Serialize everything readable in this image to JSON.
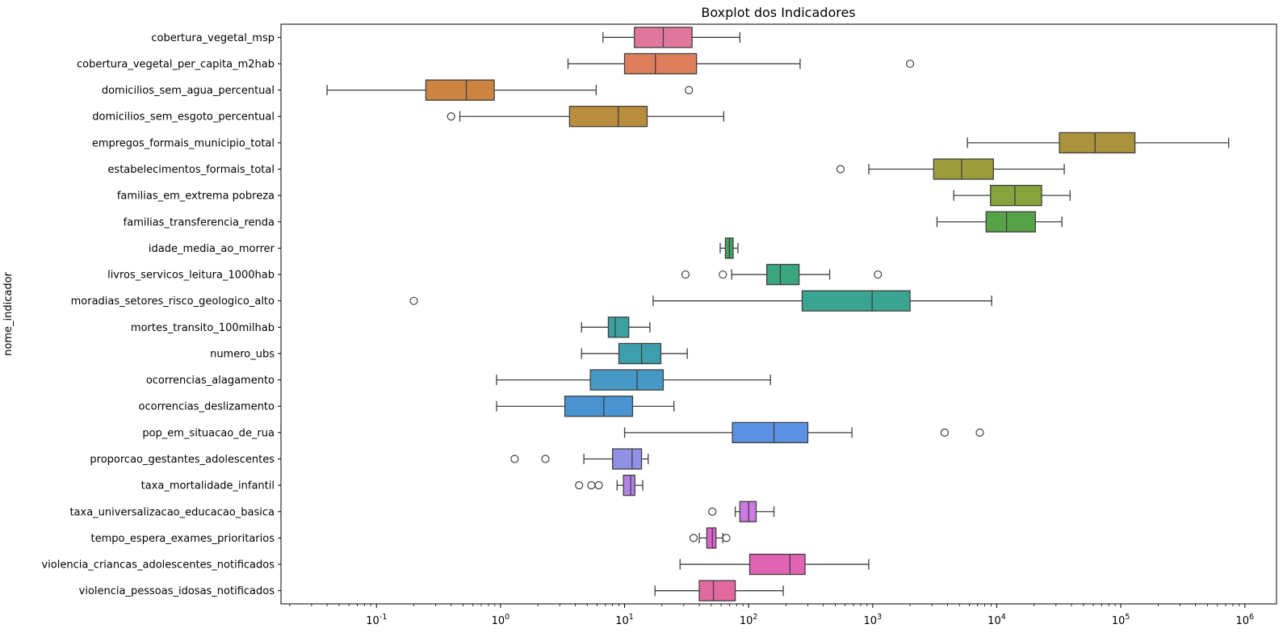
{
  "chart_data": {
    "type": "boxplot",
    "orientation": "horizontal",
    "title": "Boxplot dos Indicadores",
    "xlabel": "",
    "ylabel": "nome_indicador",
    "xscale": "log",
    "xlim": [
      0.017,
      1800000
    ],
    "xtick_base": "10",
    "xtick_exponents": [
      -1,
      0,
      1,
      2,
      3,
      4,
      5,
      6
    ],
    "grid": false,
    "legend": "none",
    "edge_color": "#3f3f3f",
    "spine_color": "#000000",
    "background_color": "#ffffff",
    "categories": [
      "cobertura_vegetal_msp",
      "cobertura_vegetal_per_capita_m2hab",
      "domicilios_sem_agua_percentual",
      "domicilios_sem_esgoto_percentual",
      "empregos_formais_municipio_total",
      "estabelecimentos_formais_total",
      "familias_em_extrema pobreza",
      "familias_transferencia_renda",
      "idade_media_ao_morrer",
      "livros_servicos_leitura_1000hab",
      "moradias_setores_risco_geologico_alto",
      "mortes_transito_100milhab",
      "numero_ubs",
      "ocorrencias_alagamento",
      "ocorrencias_deslizamento",
      "pop_em_situacao_de_rua",
      "proporcao_gestantes_adolescentes",
      "taxa_mortalidade_infantil",
      "taxa_universalizacao_educacao_basica",
      "tempo_espera_exames_prioritarios",
      "violencia_criancas_adolescentes_notificados",
      "violencia_pessoas_idosas_notificados"
    ],
    "boxes": [
      {
        "label": "cobertura_vegetal_msp",
        "color": "#e0789e",
        "whislo": 6.7,
        "q1": 12,
        "med": 20.5,
        "q3": 35,
        "whishi": 85,
        "fliers": []
      },
      {
        "label": "cobertura_vegetal_per_capita_m2hab",
        "color": "#de7e5d",
        "whislo": 3.5,
        "q1": 10,
        "med": 17.7,
        "q3": 38,
        "whishi": 260,
        "fliers": [
          2000
        ]
      },
      {
        "label": "domicilios_sem_agua_percentual",
        "color": "#cc8440",
        "whislo": 0.04,
        "q1": 0.25,
        "med": 0.53,
        "q3": 0.89,
        "whishi": 5.9,
        "fliers": [
          33
        ]
      },
      {
        "label": "domicilios_sem_esgoto_percentual",
        "color": "#b98d3e",
        "whislo": 0.47,
        "q1": 3.6,
        "med": 8.9,
        "q3": 15.2,
        "whishi": 63,
        "fliers": [
          0.4
        ]
      },
      {
        "label": "empregos_formais_municipio_total",
        "color": "#ab923c",
        "whislo": 5800,
        "q1": 32000,
        "med": 62000,
        "q3": 130000,
        "whishi": 740000,
        "fliers": []
      },
      {
        "label": "estabelecimentos_formais_total",
        "color": "#9c9c3c",
        "whislo": 930,
        "q1": 3100,
        "med": 5200,
        "q3": 9400,
        "whishi": 35000,
        "fliers": [
          550
        ]
      },
      {
        "label": "familias_em_extrema pobreza",
        "color": "#85a43e",
        "whislo": 4500,
        "q1": 8900,
        "med": 14000,
        "q3": 23000,
        "whishi": 39000,
        "fliers": []
      },
      {
        "label": "familias_transferencia_renda",
        "color": "#57a448",
        "whislo": 3300,
        "q1": 8200,
        "med": 12000,
        "q3": 20500,
        "whishi": 33500,
        "fliers": []
      },
      {
        "label": "idade_media_ao_morrer",
        "color": "#3ea45f",
        "whislo": 59,
        "q1": 65,
        "med": 70,
        "q3": 75,
        "whishi": 82,
        "fliers": []
      },
      {
        "label": "livros_servicos_leitura_1000hab",
        "color": "#3aa57e",
        "whislo": 73,
        "q1": 140,
        "med": 180,
        "q3": 255,
        "whishi": 450,
        "fliers": [
          31,
          62,
          1100
        ]
      },
      {
        "label": "moradias_setores_risco_geologico_alto",
        "color": "#39a590",
        "whislo": 17,
        "q1": 270,
        "med": 990,
        "q3": 2000,
        "whishi": 9100,
        "fliers": [
          0.2
        ]
      },
      {
        "label": "mortes_transito_100milhab",
        "color": "#3aa1a1",
        "whislo": 4.5,
        "q1": 7.4,
        "med": 8.4,
        "q3": 10.8,
        "whishi": 16,
        "fliers": []
      },
      {
        "label": "numero_ubs",
        "color": "#3d9fae",
        "whislo": 4.5,
        "q1": 9,
        "med": 13.7,
        "q3": 19.6,
        "whishi": 32,
        "fliers": []
      },
      {
        "label": "ocorrencias_alagamento",
        "color": "#4599c4",
        "whislo": 0.93,
        "q1": 5.3,
        "med": 12.6,
        "q3": 20.5,
        "whishi": 150,
        "fliers": []
      },
      {
        "label": "ocorrencias_deslizamento",
        "color": "#4a93d2",
        "whislo": 0.93,
        "q1": 3.3,
        "med": 6.8,
        "q3": 11.6,
        "whishi": 25,
        "fliers": []
      },
      {
        "label": "pop_em_situacao_de_rua",
        "color": "#5c90e2",
        "whislo": 10,
        "q1": 74,
        "med": 160,
        "q3": 300,
        "whishi": 680,
        "fliers": [
          3800,
          7300
        ]
      },
      {
        "label": "proporcao_gestantes_adolescentes",
        "color": "#9090e5",
        "whislo": 4.7,
        "q1": 8,
        "med": 11.5,
        "q3": 13.7,
        "whishi": 15.5,
        "fliers": [
          1.3,
          2.3
        ]
      },
      {
        "label": "taxa_mortalidade_infantil",
        "color": "#b183e9",
        "whislo": 8.7,
        "q1": 9.8,
        "med": 11.2,
        "q3": 12.1,
        "whishi": 14,
        "fliers": [
          4.3,
          5.4,
          6.2
        ]
      },
      {
        "label": "taxa_universalizacao_educacao_basica",
        "color": "#ce78e3",
        "whislo": 78,
        "q1": 85,
        "med": 100,
        "q3": 115,
        "whishi": 160,
        "fliers": [
          51
        ]
      },
      {
        "label": "tempo_espera_exames_prioritarios",
        "color": "#dd63cd",
        "whislo": 40,
        "q1": 46,
        "med": 51,
        "q3": 54.5,
        "whishi": 62,
        "fliers": [
          36,
          66
        ]
      },
      {
        "label": "violencia_criancas_adolescentes_notificados",
        "color": "#e263b4",
        "whislo": 28,
        "q1": 102,
        "med": 215,
        "q3": 285,
        "whishi": 930,
        "fliers": []
      },
      {
        "label": "violencia_pessoas_idosas_notificados",
        "color": "#e2699e",
        "whislo": 17.6,
        "q1": 40,
        "med": 52,
        "q3": 78,
        "whishi": 190,
        "fliers": []
      }
    ]
  }
}
